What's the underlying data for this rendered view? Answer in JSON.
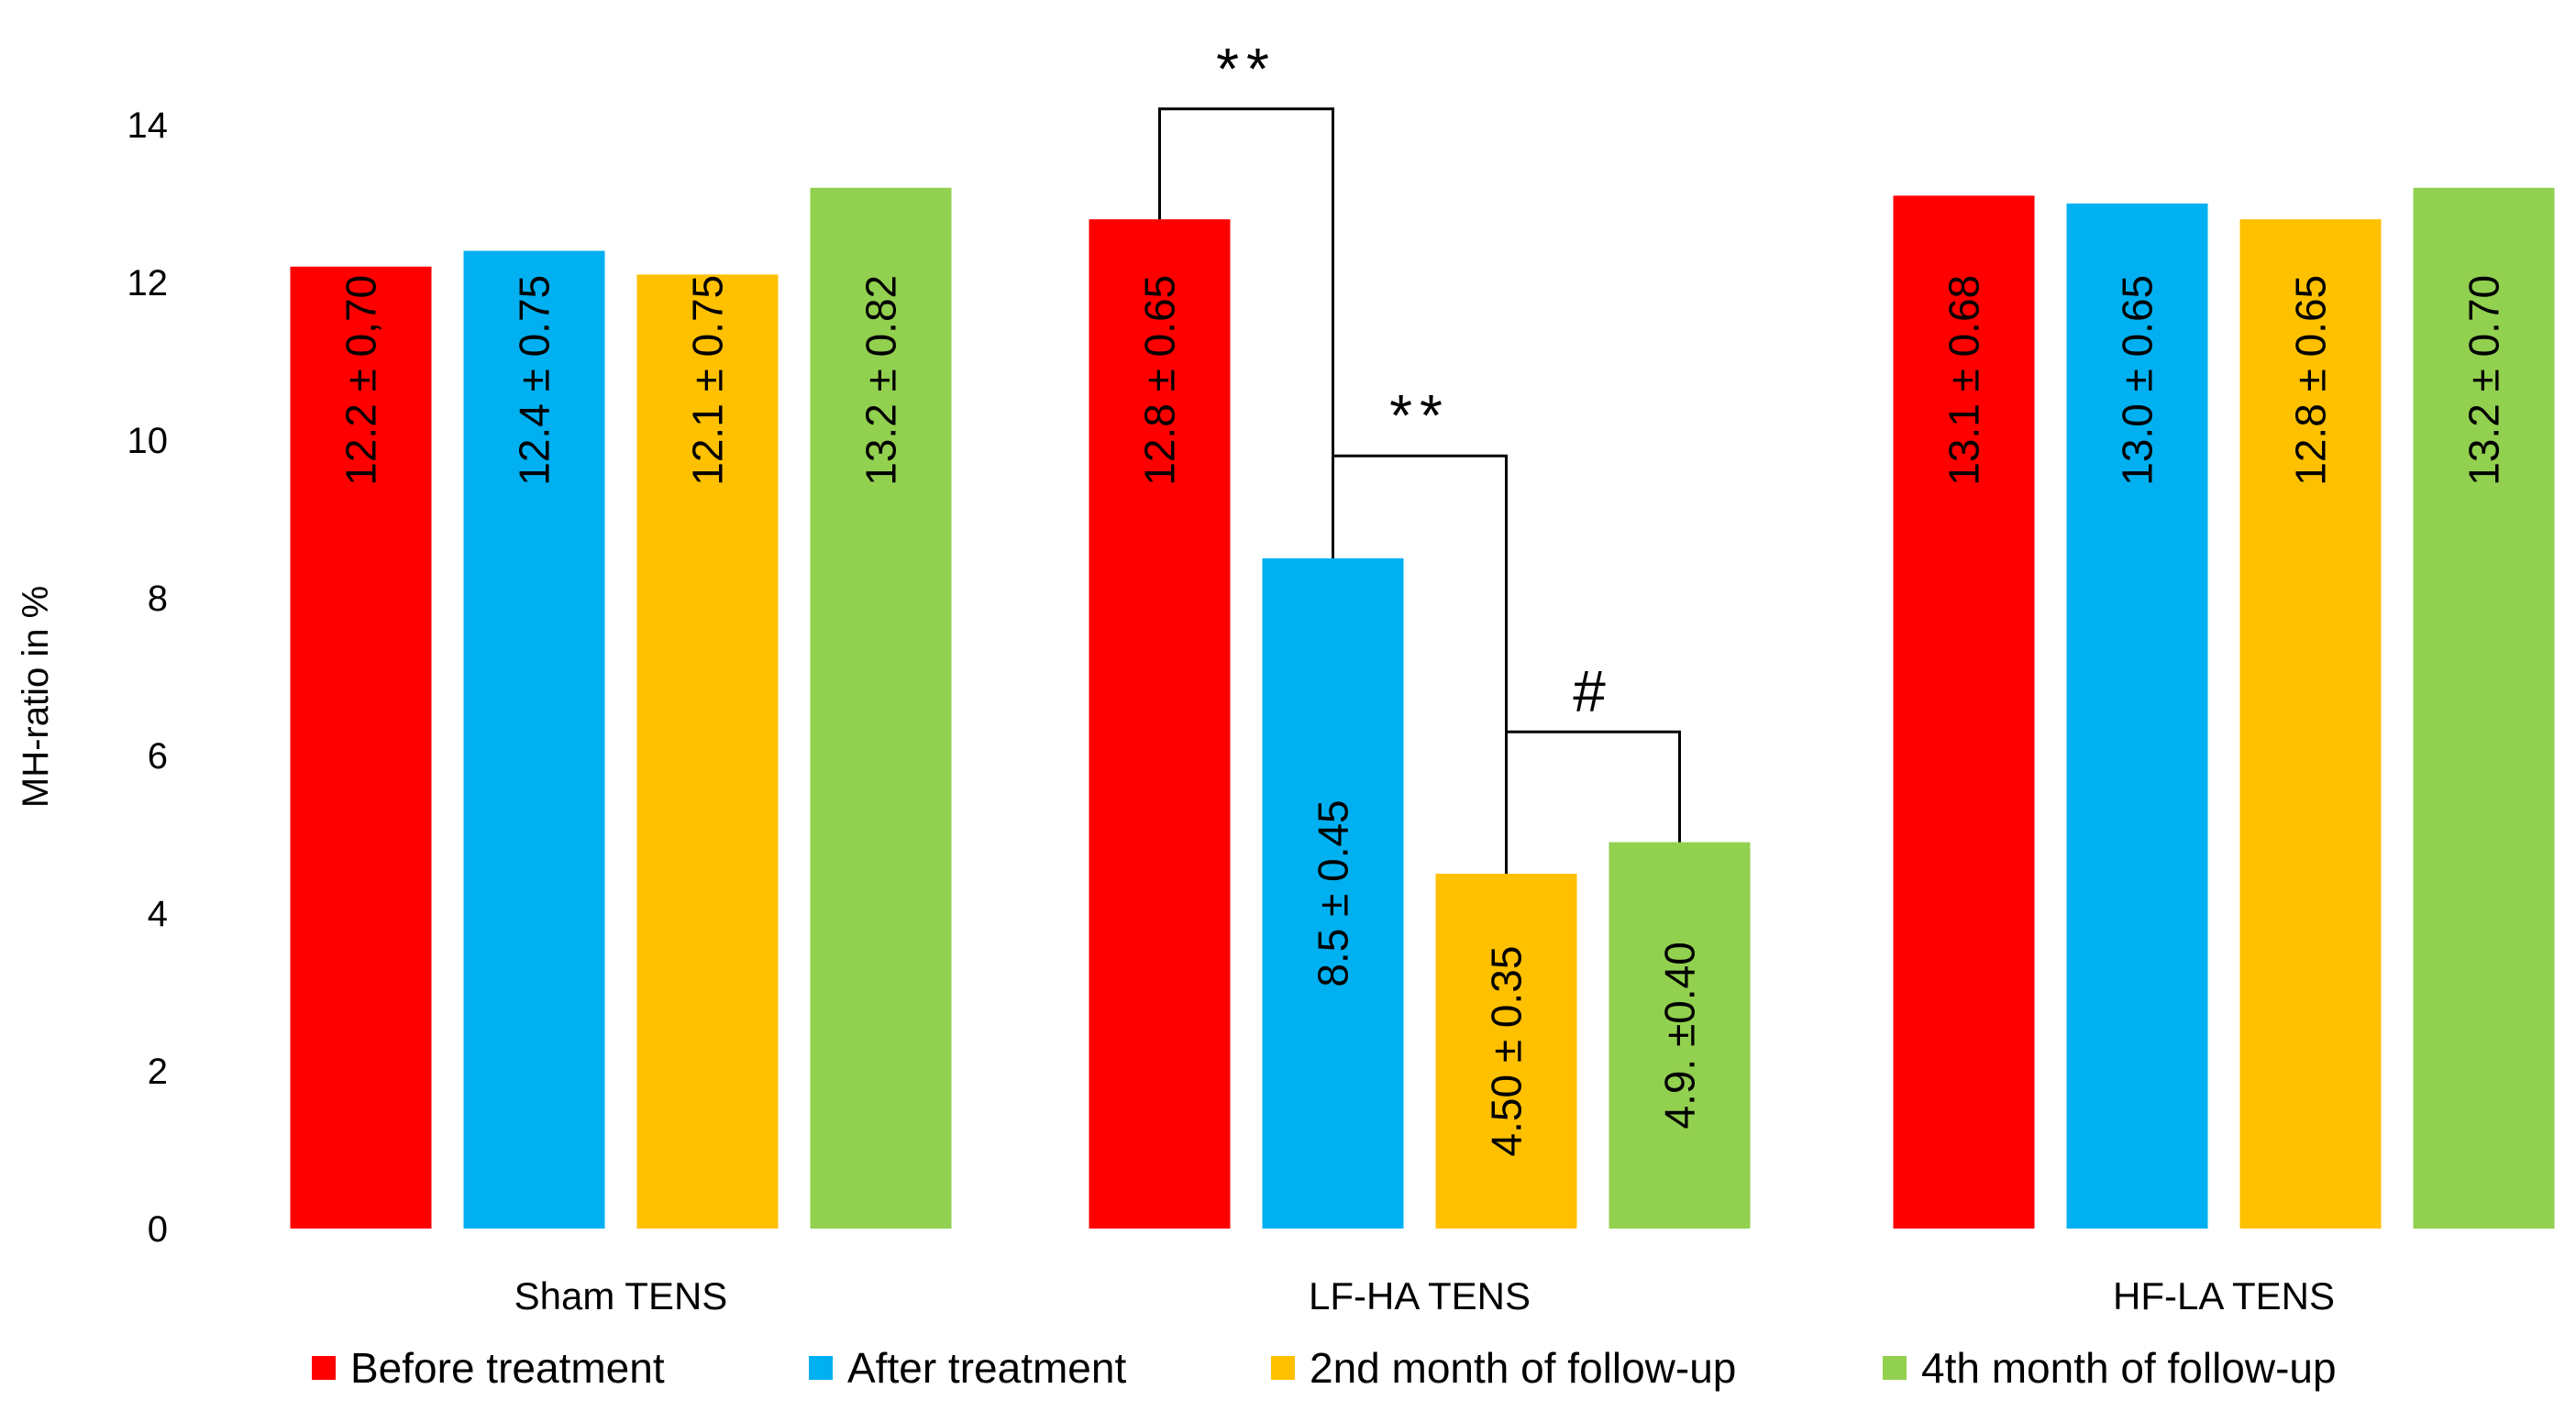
{
  "chart_data": {
    "type": "bar",
    "ylabel": "MH-ratio in %",
    "xlabel": "",
    "ylim": [
      0,
      14
    ],
    "yticks": [
      0,
      2,
      4,
      6,
      8,
      10,
      12,
      14
    ],
    "grid": false,
    "legend_position": "bottom",
    "categories": [
      "Sham TENS",
      "LF-HA TENS",
      "HF-LA TENS"
    ],
    "series": [
      {
        "name": "Before treatment",
        "color": "#FF0000",
        "values": [
          12.2,
          12.8,
          13.1
        ],
        "labels": [
          "12.2 ± 0,70",
          "12.8 ± 0.65",
          "13.1 ± 0.68"
        ]
      },
      {
        "name": "After treatment",
        "color": "#00B0F0",
        "values": [
          12.4,
          8.5,
          13.0
        ],
        "labels": [
          "12.4 ± 0.75",
          "8.5 ± 0.45",
          "13.0 ± 0.65"
        ]
      },
      {
        "name": "2nd month of follow-up",
        "color": "#FFC000",
        "values": [
          12.1,
          4.5,
          12.8
        ],
        "labels": [
          "12.1 ± 0.75",
          "4.50 ± 0.35",
          "12.8 ± 0.65"
        ]
      },
      {
        "name": "4th month of follow-up",
        "color": "#92D050",
        "values": [
          13.2,
          4.9,
          13.2
        ],
        "labels": [
          "13.2 ± 0.82",
          "4.9. ±0.40",
          "13.2 ± 0.70"
        ]
      }
    ],
    "annotations": [
      {
        "category": 1,
        "from_series": 0,
        "to_series": 1,
        "label": "**",
        "level": 14.2
      },
      {
        "category": 1,
        "from_series": 1,
        "to_series": 2,
        "label": "**",
        "level": 9.8
      },
      {
        "category": 1,
        "from_series": 2,
        "to_series": 3,
        "label": "#",
        "level": 6.3
      }
    ]
  }
}
